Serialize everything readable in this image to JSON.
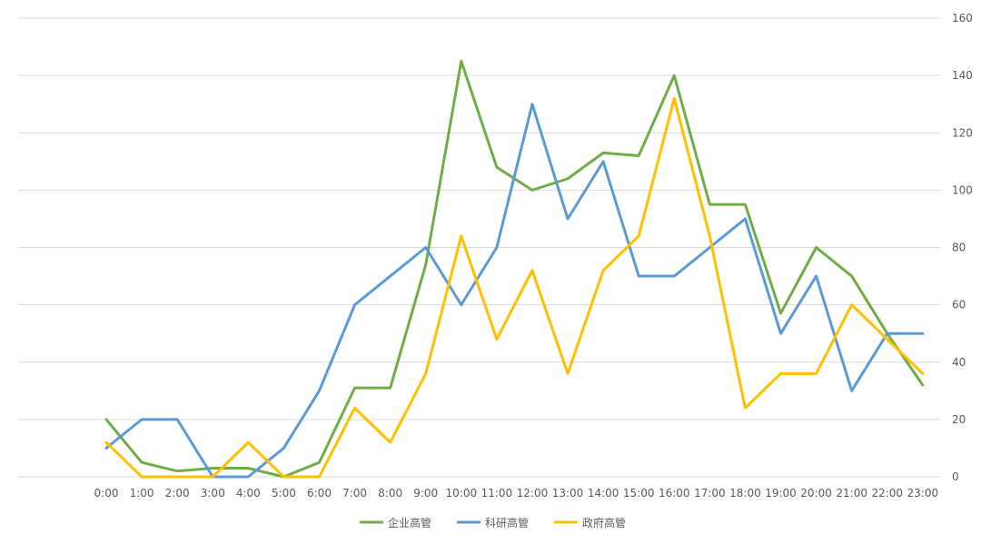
{
  "chart_data": {
    "type": "line",
    "title": "",
    "xlabel": "",
    "ylabel": "",
    "categories": [
      "0:00",
      "1:00",
      "2:00",
      "3:00",
      "4:00",
      "5:00",
      "6:00",
      "7:00",
      "8:00",
      "9:00",
      "10:00",
      "11:00",
      "12:00",
      "13:00",
      "14:00",
      "15:00",
      "16:00",
      "17:00",
      "18:00",
      "19:00",
      "20:00",
      "21:00",
      "22:00",
      "23:00"
    ],
    "ylim": [
      0,
      160
    ],
    "yticks": [
      "0",
      "20",
      "40",
      "60",
      "80",
      "100",
      "120",
      "140",
      "160"
    ],
    "y_axis_side": "right",
    "grid": true,
    "legend_position": "bottom",
    "series": [
      {
        "name": "企业高管",
        "color": "#70ad47",
        "values": [
          20,
          5,
          2,
          3,
          3,
          0,
          5,
          31,
          31,
          74,
          145,
          108,
          100,
          104,
          113,
          112,
          140,
          95,
          95,
          57,
          80,
          70,
          50,
          32
        ]
      },
      {
        "name": "科研高管",
        "color": "#5b9bd5",
        "values": [
          10,
          20,
          20,
          0,
          0,
          10,
          30,
          60,
          70,
          80,
          60,
          80,
          130,
          90,
          110,
          70,
          70,
          80,
          90,
          50,
          70,
          30,
          50,
          50
        ]
      },
      {
        "name": "政府高管",
        "color": "#ffc000",
        "values": [
          12,
          0,
          0,
          0,
          12,
          0,
          0,
          24,
          12,
          36,
          84,
          48,
          72,
          36,
          72,
          84,
          132,
          84,
          24,
          36,
          36,
          60,
          48,
          36
        ]
      }
    ]
  }
}
